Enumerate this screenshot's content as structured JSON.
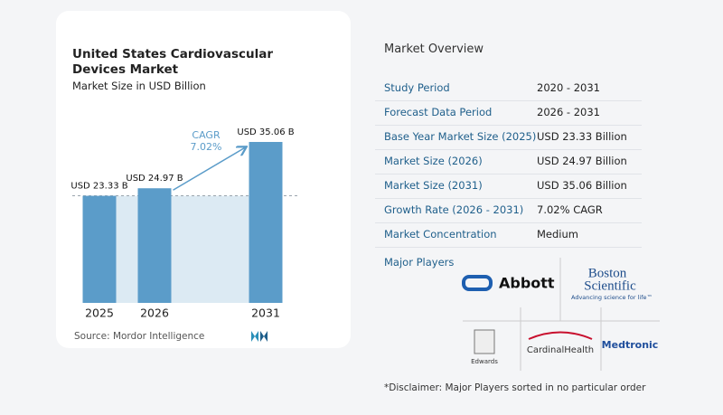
{
  "chart_data": {
    "type": "bar",
    "title": "United States Cardiovascular Devices Market",
    "subtitle": "Market Size in USD Billion",
    "categories": [
      "2025",
      "2026",
      "2031"
    ],
    "values": [
      23.33,
      24.97,
      35.06
    ],
    "value_labels": [
      "USD 23.33 B",
      "USD 24.97 B",
      "USD 35.06 B"
    ],
    "color": "#5b9cc9",
    "annotation": {
      "label": "CAGR",
      "value": "7.02%"
    },
    "source": "Source: Mordor Intelligence"
  },
  "overview": {
    "title": "Market Overview",
    "rows": [
      [
        "Study Period",
        "2020 - 2031"
      ],
      [
        "Forecast Data Period",
        "2026 - 2031"
      ],
      [
        "Base Year Market Size (2025)",
        "USD 23.33 Billion"
      ],
      [
        "Market Size (2026)",
        "USD 24.97 Billion"
      ],
      [
        "Market Size (2031)",
        "USD 35.06 Billion"
      ],
      [
        "Growth Rate (2026 - 2031)",
        "7.02% CAGR"
      ],
      [
        "Market Concentration",
        "Medium"
      ]
    ],
    "major_players_label": "Major Players",
    "players": {
      "abbott": "Abbott",
      "boston": "Boston",
      "scientific": "Scientific",
      "boston_tagline": "Advancing science for life™",
      "edwards": "Edwards",
      "cardinal": "CardinalHealth",
      "medtronic": "Medtronic"
    },
    "disclaimer": "*Disclaimer: Major Players sorted in no particular order"
  }
}
